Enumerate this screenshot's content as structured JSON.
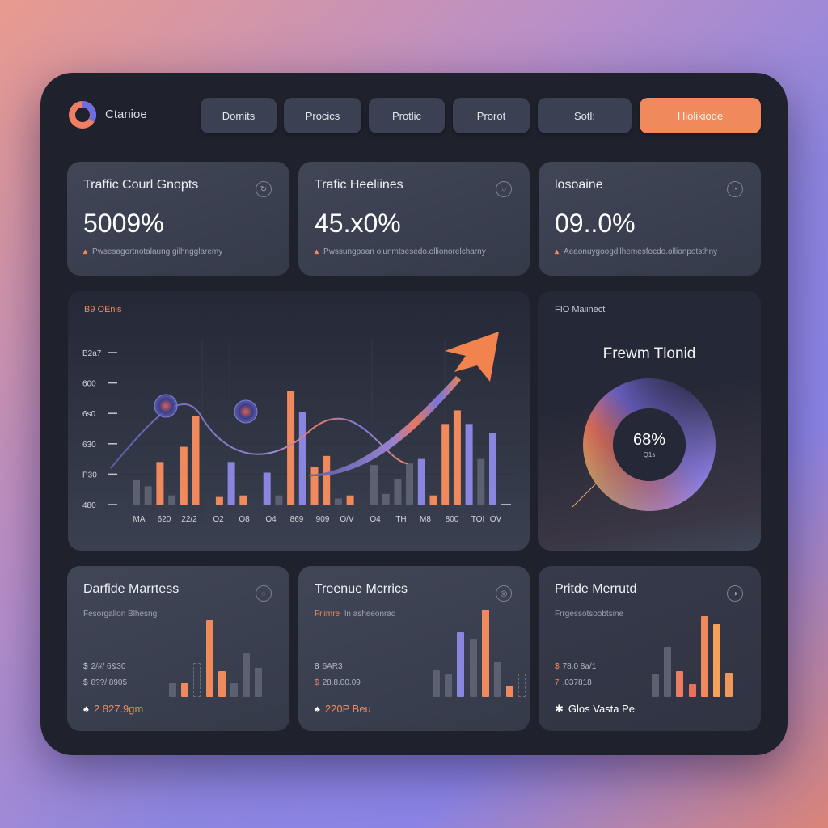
{
  "header": {
    "brand": "Ctanioe",
    "nav": [
      "Domits",
      "Procics",
      "Protlic",
      "Prorot",
      "Sotl:",
      "Hiolikiode"
    ],
    "active_index": 5
  },
  "kpis": [
    {
      "title": "Traffic Courl Gnopts",
      "value": "5009%",
      "desc": "Pwsesagortnotalaung gilhngglaremy",
      "icon": "refresh-icon"
    },
    {
      "title": "Trafic Heeliines",
      "value": "45.x0%",
      "desc": "Pwssungpoan olunmtsesedo.ollionorelcharny",
      "icon": "circle-icon"
    },
    {
      "title": "losoaine",
      "value": "09..0%",
      "desc": "Aeaonuygoogdilhemesfocdo.ollionpotsthny",
      "icon": "chat-icon"
    }
  ],
  "main_chart": {
    "label": "B9 OEnis"
  },
  "chart_data": {
    "type": "bar",
    "title": "B9 OEnis",
    "y_tick_labels": [
      "B2a7",
      "600",
      "6s0",
      "630",
      "P30",
      "480"
    ],
    "x_tick_labels": [
      "MA",
      "620",
      "22/2",
      "O2",
      "O8",
      "O4",
      "869",
      "909",
      "O/V",
      "O4",
      "TH",
      "M8",
      "800",
      "TOI",
      "OV"
    ],
    "ylim": [
      0,
      100
    ],
    "bars": [
      16,
      12,
      28,
      6,
      38,
      58,
      null,
      5,
      28,
      6,
      null,
      21,
      6,
      75,
      61,
      25,
      32,
      4,
      6,
      null,
      26,
      7,
      17,
      27,
      30,
      6,
      53,
      62,
      53,
      30,
      47
    ],
    "bar_colors": [
      "gray",
      "gray",
      "orange",
      "gray",
      "orange",
      "orange",
      null,
      "orange",
      "purple",
      "orange",
      null,
      "purple",
      "gray",
      "orange",
      "purple",
      "orange",
      "orange",
      "gray",
      "orange",
      null,
      "gray",
      "gray",
      "gray",
      "gray",
      "purple",
      "orange",
      "orange",
      "orange",
      "purple",
      "gray",
      "purple"
    ],
    "trend_line": [
      24,
      74,
      58,
      13,
      48,
      27,
      100
    ],
    "grid": true,
    "colors": {
      "orange": "#f08a5d",
      "purple": "#8a86e0",
      "gray": "#5d6070"
    }
  },
  "donut": {
    "label": "FIO Maiinect",
    "title": "Frewm Tlonid",
    "value": "68%",
    "sub": "Q1s"
  },
  "bottom": [
    {
      "title": "Darfide Marrtess",
      "sub_pre": "",
      "sub": "Fesorgallon Blhesng",
      "lines": [
        {
          "k": "$",
          "v": "2/#/ 6&30"
        },
        {
          "k": "$",
          "v": "8??/ 8905"
        }
      ],
      "icon_glyph": "♠",
      "value": "2 827.9gm",
      "value_color": "#f08a5d",
      "bars": [
        17,
        17,
        42,
        95,
        32,
        17,
        54,
        36
      ],
      "bar_colors": [
        "#5d6070",
        "#f08a5d",
        "dash",
        "#f08a5d",
        "#f08a5d",
        "#5d6070",
        "#5d6070",
        "#5d6070"
      ]
    },
    {
      "title": "Treenue Mcrrics",
      "sub_pre": "Friimre",
      "sub": "ln asheeonrad",
      "lines": [
        {
          "k": "8",
          "v": "6AR3"
        },
        {
          "k": "$",
          "v": "28.8.00.09"
        }
      ],
      "icon_glyph": "♠",
      "value": "220P Beu",
      "value_color": "#f08a5d",
      "bars": [
        33,
        28,
        80,
        72,
        108,
        43,
        14,
        29,
        17
      ],
      "bar_colors": [
        "#5d6070",
        "#5d6070",
        "#8a86e0",
        "#5d6070",
        "#f08a5d",
        "#5d6070",
        "#f08a5d",
        "dash",
        "#5d6070"
      ]
    },
    {
      "title": "Pritde Merrutd",
      "sub_pre": "",
      "sub": "Frrgessotsoobtsine",
      "lines": [
        {
          "k": "$",
          "v": "78.0 8a/1"
        },
        {
          "k": "7",
          "v": ".037818"
        }
      ],
      "icon_glyph": "✱",
      "value": "Glos Vasta Pe",
      "value_color": "#ffffff",
      "bars": [
        28,
        62,
        32,
        16,
        100,
        90,
        30
      ],
      "bar_colors": [
        "#5d6070",
        "#5d6070",
        "#ec7c62",
        "#e8705c",
        "#f08a5d",
        "#f4a25a",
        "#f0985a"
      ]
    }
  ]
}
